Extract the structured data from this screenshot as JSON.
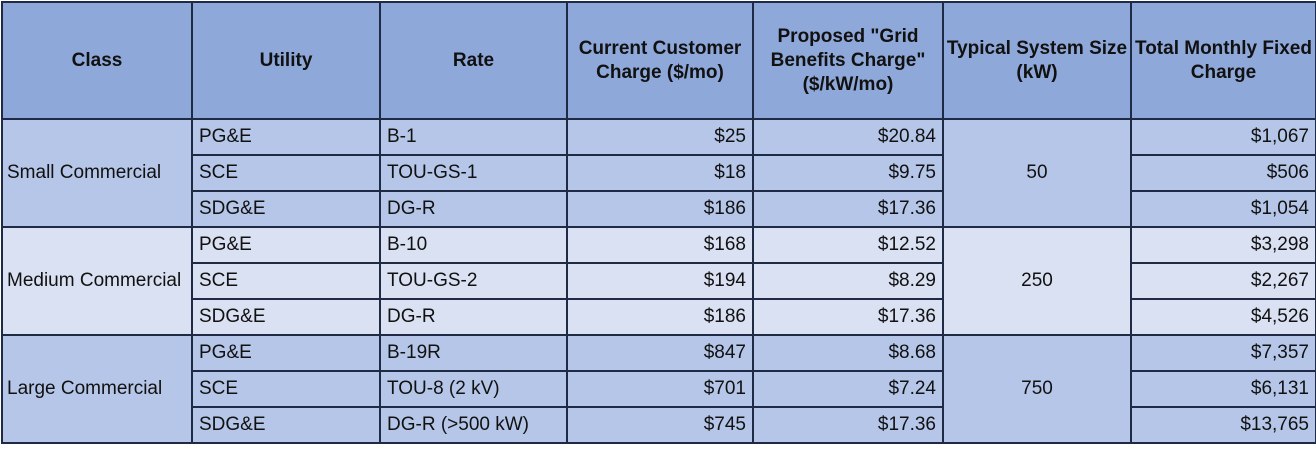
{
  "headers": {
    "class": "Class",
    "utility": "Utility",
    "rate": "Rate",
    "current_charge": "Current Customer Charge ($/mo)",
    "grid_charge": "Proposed \"Grid Benefits Charge\" ($/kW/mo)",
    "system_size": "Typical System Size (kW)",
    "total_charge": "Total Monthly Fixed Charge"
  },
  "groups": [
    {
      "class": "Small Commercial",
      "system_size": "50",
      "rows": [
        {
          "utility": "PG&E",
          "rate": "B-1",
          "current": "$25",
          "grid": "$20.84",
          "total": "$1,067"
        },
        {
          "utility": "SCE",
          "rate": "TOU-GS-1",
          "current": "$18",
          "grid": "$9.75",
          "total": "$506"
        },
        {
          "utility": "SDG&E",
          "rate": "DG-R",
          "current": "$186",
          "grid": "$17.36",
          "total": "$1,054"
        }
      ]
    },
    {
      "class": "Medium Commercial",
      "system_size": "250",
      "rows": [
        {
          "utility": "PG&E",
          "rate": "B-10",
          "current": "$168",
          "grid": "$12.52",
          "total": "$3,298"
        },
        {
          "utility": "SCE",
          "rate": "TOU-GS-2",
          "current": "$194",
          "grid": "$8.29",
          "total": "$2,267"
        },
        {
          "utility": "SDG&E",
          "rate": "DG-R",
          "current": "$186",
          "grid": "$17.36",
          "total": "$4,526"
        }
      ]
    },
    {
      "class": "Large Commercial",
      "system_size": "750",
      "rows": [
        {
          "utility": "PG&E",
          "rate": "B-19R",
          "current": "$847",
          "grid": "$8.68",
          "total": "$7,357"
        },
        {
          "utility": "SCE",
          "rate": "TOU-8 (2 kV)",
          "current": "$701",
          "grid": "$7.24",
          "total": "$6,131"
        },
        {
          "utility": "SDG&E",
          "rate": "DG-R (>500 kW)",
          "current": "$745",
          "grid": "$17.36",
          "total": "$13,765"
        }
      ]
    }
  ],
  "colors": {
    "header_bg": "#8fa8da",
    "row_dark": "#b5c6e8",
    "row_light": "#d9e1f2",
    "border": "#1f2a44"
  }
}
